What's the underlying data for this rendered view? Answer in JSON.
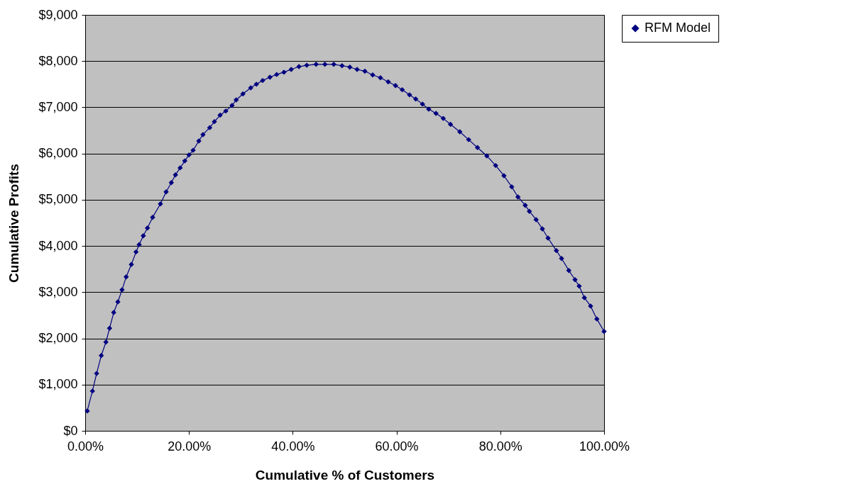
{
  "chart_data": {
    "type": "line",
    "xlabel": "Cumulative % of Customers",
    "ylabel": "Cumulative Profits",
    "xlim": [
      0,
      100
    ],
    "ylim": [
      0,
      9000
    ],
    "xticks": [
      {
        "value": 0,
        "label": "0.00%"
      },
      {
        "value": 20,
        "label": "20.00%"
      },
      {
        "value": 40,
        "label": "40.00%"
      },
      {
        "value": 60,
        "label": "60.00%"
      },
      {
        "value": 80,
        "label": "80.00%"
      },
      {
        "value": 100,
        "label": "100.00%"
      }
    ],
    "yticks": [
      {
        "value": 0,
        "label": "$0"
      },
      {
        "value": 1000,
        "label": "$1,000"
      },
      {
        "value": 2000,
        "label": "$2,000"
      },
      {
        "value": 3000,
        "label": "$3,000"
      },
      {
        "value": 4000,
        "label": "$4,000"
      },
      {
        "value": 5000,
        "label": "$5,000"
      },
      {
        "value": 6000,
        "label": "$6,000"
      },
      {
        "value": 7000,
        "label": "$7,000"
      },
      {
        "value": 8000,
        "label": "$8,000"
      },
      {
        "value": 9000,
        "label": "$9,000"
      }
    ],
    "grid": "y",
    "legend": "right",
    "marker": "diamond",
    "line_style": "solid",
    "x": [
      0.4,
      1.4,
      2.2,
      3.1,
      4,
      4.7,
      5.5,
      6.3,
      7.1,
      7.9,
      8.9,
      9.8,
      10.4,
      11.2,
      12,
      13,
      14.5,
      15.6,
      16.6,
      17.4,
      18.3,
      19.2,
      20,
      20.8,
      21.9,
      22.7,
      24,
      24.9,
      26,
      27.1,
      28.3,
      29.1,
      30.4,
      31.9,
      33,
      34.2,
      35.6,
      36.9,
      38.3,
      39.7,
      41.2,
      42.7,
      44.5,
      46.2,
      47.9,
      49.5,
      51,
      52.4,
      53.9,
      55.4,
      56.9,
      58.4,
      59.8,
      61.1,
      62.5,
      63.7,
      65,
      66.2,
      67.6,
      69,
      70.4,
      72.2,
      73.9,
      75.6,
      77.4,
      79.1,
      80.7,
      82.2,
      83.4,
      84.8,
      85.6,
      86.9,
      88.1,
      89.2,
      90.8,
      91.8,
      93.2,
      94.4,
      95.2,
      96.2,
      97.4,
      98.6,
      100
    ],
    "series": [
      {
        "name": "RFM Model",
        "color": "#000080",
        "values": [
          430,
          860,
          1240,
          1630,
          1920,
          2220,
          2560,
          2790,
          3050,
          3330,
          3600,
          3870,
          4030,
          4220,
          4390,
          4620,
          4910,
          5170,
          5370,
          5540,
          5690,
          5840,
          5970,
          6070,
          6270,
          6410,
          6560,
          6690,
          6830,
          6920,
          7040,
          7160,
          7290,
          7420,
          7500,
          7580,
          7650,
          7710,
          7760,
          7820,
          7880,
          7910,
          7930,
          7930,
          7930,
          7900,
          7870,
          7820,
          7780,
          7700,
          7640,
          7550,
          7470,
          7380,
          7270,
          7180,
          7070,
          6960,
          6870,
          6760,
          6630,
          6470,
          6300,
          6130,
          5950,
          5740,
          5520,
          5280,
          5060,
          4880,
          4750,
          4570,
          4370,
          4170,
          3900,
          3730,
          3470,
          3270,
          3130,
          2880,
          2700,
          2420,
          2150
        ]
      }
    ]
  }
}
